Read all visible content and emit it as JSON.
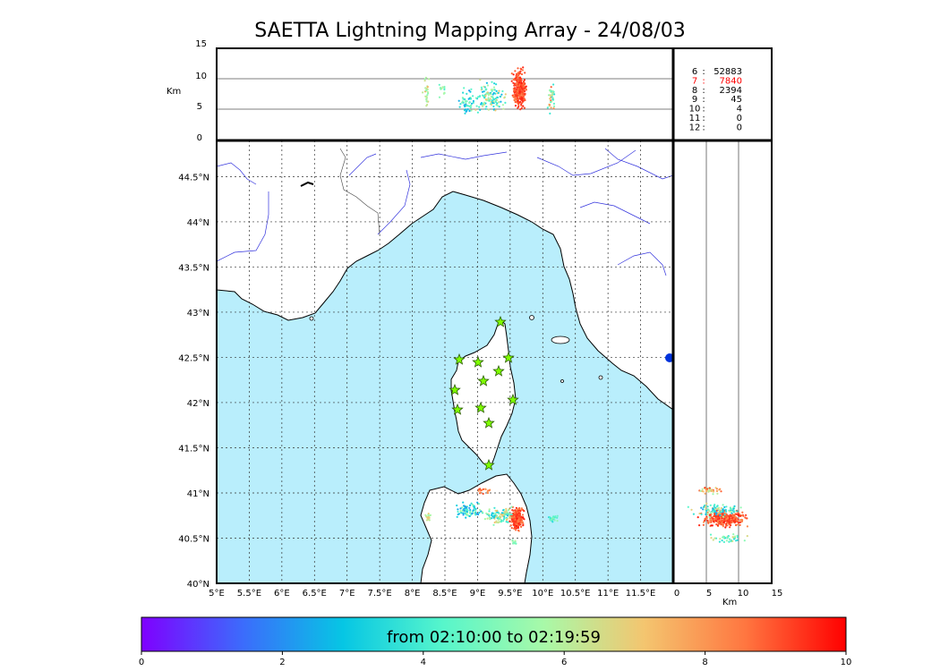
{
  "title": "SAETTA Lightning Mapping Array - 24/08/03",
  "top_panel": {
    "y_unit": "Km",
    "y_ticks": [
      "15",
      "10",
      "5",
      "0"
    ]
  },
  "side_panel": {
    "x_unit": "Km",
    "x_ticks": [
      "0",
      "5",
      "10",
      "15"
    ]
  },
  "station_counts": [
    {
      "stations": "6",
      "count": "52883",
      "color": "#000000"
    },
    {
      "stations": "7",
      "count": "7840",
      "color": "#ff0000"
    },
    {
      "stations": "8",
      "count": "2394",
      "color": "#000000"
    },
    {
      "stations": "9",
      "count": "45",
      "color": "#000000"
    },
    {
      "stations": "10",
      "count": "4",
      "color": "#000000"
    },
    {
      "stations": "11",
      "count": "0",
      "color": "#000000"
    },
    {
      "stations": "12",
      "count": "0",
      "color": "#000000"
    }
  ],
  "map": {
    "lon_labels": [
      "5°E",
      "5.5°E",
      "6°E",
      "6.5°E",
      "7°E",
      "7.5°E",
      "8°E",
      "8.5°E",
      "9°E",
      "9.5°E",
      "10°E",
      "10.5°E",
      "11°E",
      "11.5°E"
    ],
    "lat_labels": [
      "44.5°N",
      "44°N",
      "43.5°N",
      "43°N",
      "42.5°N",
      "42°N",
      "41.5°N",
      "41°N",
      "40.5°N",
      "40°N"
    ],
    "sea_color": "#b9eefc",
    "station_color": "#7fff00"
  },
  "colorbar": {
    "label": "from 02:10:00 to 02:19:59",
    "ticks": [
      "0",
      "2",
      "4",
      "6",
      "8",
      "10"
    ],
    "colors": [
      "#7f00ff",
      "#3c6bfc",
      "#06c6e4",
      "#57f6cb",
      "#a8f9a8",
      "#f4c56f",
      "#ff7640",
      "#ff0000"
    ]
  }
}
